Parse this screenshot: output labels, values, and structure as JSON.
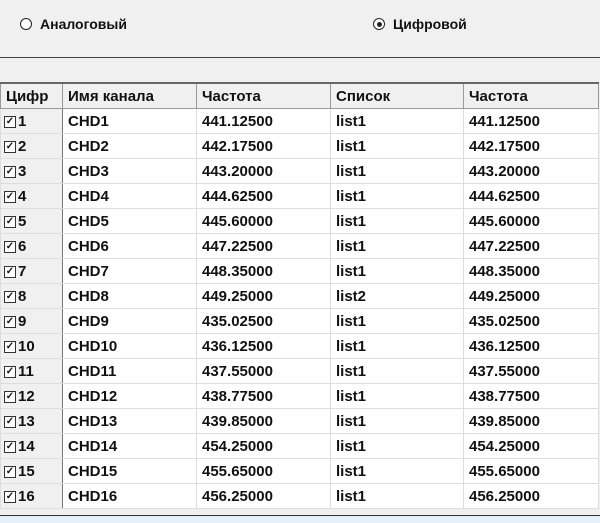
{
  "mode": {
    "analog_label": "Аналоговый",
    "digital_label": "Цифровой",
    "selected": "digital"
  },
  "table": {
    "headers": [
      "Цифр",
      "Имя канала",
      "Частота",
      "Список",
      "Частота"
    ],
    "rows": [
      {
        "num": "1",
        "checked": true,
        "name": "CHD1",
        "freq": "441.12500",
        "list": "list1",
        "freq2": "441.12500"
      },
      {
        "num": "2",
        "checked": true,
        "name": "CHD2",
        "freq": "442.17500",
        "list": "list1",
        "freq2": "442.17500"
      },
      {
        "num": "3",
        "checked": true,
        "name": "CHD3",
        "freq": "443.20000",
        "list": "list1",
        "freq2": "443.20000"
      },
      {
        "num": "4",
        "checked": true,
        "name": "CHD4",
        "freq": "444.62500",
        "list": "list1",
        "freq2": "444.62500"
      },
      {
        "num": "5",
        "checked": true,
        "name": "CHD5",
        "freq": "445.60000",
        "list": "list1",
        "freq2": "445.60000"
      },
      {
        "num": "6",
        "checked": true,
        "name": "CHD6",
        "freq": "447.22500",
        "list": "list1",
        "freq2": "447.22500"
      },
      {
        "num": "7",
        "checked": true,
        "name": "CHD7",
        "freq": "448.35000",
        "list": "list1",
        "freq2": "448.35000"
      },
      {
        "num": "8",
        "checked": true,
        "name": "CHD8",
        "freq": "449.25000",
        "list": "list2",
        "freq2": "449.25000"
      },
      {
        "num": "9",
        "checked": true,
        "name": "CHD9",
        "freq": "435.02500",
        "list": "list1",
        "freq2": "435.02500"
      },
      {
        "num": "10",
        "checked": true,
        "name": "CHD10",
        "freq": "436.12500",
        "list": "list1",
        "freq2": "436.12500"
      },
      {
        "num": "11",
        "checked": true,
        "name": "CHD11",
        "freq": "437.55000",
        "list": "list1",
        "freq2": "437.55000"
      },
      {
        "num": "12",
        "checked": true,
        "name": "CHD12",
        "freq": "438.77500",
        "list": "list1",
        "freq2": "438.77500"
      },
      {
        "num": "13",
        "checked": true,
        "name": "CHD13",
        "freq": "439.85000",
        "list": "list1",
        "freq2": "439.85000"
      },
      {
        "num": "14",
        "checked": true,
        "name": "CHD14",
        "freq": "454.25000",
        "list": "list1",
        "freq2": "454.25000"
      },
      {
        "num": "15",
        "checked": true,
        "name": "CHD15",
        "freq": "455.65000",
        "list": "list1",
        "freq2": "455.65000"
      },
      {
        "num": "16",
        "checked": true,
        "name": "CHD16",
        "freq": "456.25000",
        "list": "list1",
        "freq2": "456.25000"
      }
    ]
  }
}
